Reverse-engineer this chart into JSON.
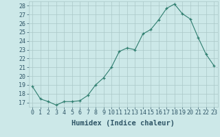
{
  "x": [
    0,
    1,
    2,
    3,
    4,
    5,
    6,
    7,
    8,
    9,
    10,
    11,
    12,
    13,
    14,
    15,
    16,
    17,
    18,
    19,
    20,
    21,
    22,
    23
  ],
  "y": [
    18.8,
    17.4,
    17.1,
    16.7,
    17.1,
    17.1,
    17.2,
    17.8,
    19.0,
    19.8,
    21.0,
    22.8,
    23.2,
    23.0,
    24.8,
    25.3,
    26.4,
    27.7,
    28.2,
    27.1,
    26.5,
    24.4,
    22.5,
    21.2
  ],
  "line_color": "#2e7d6e",
  "marker": "+",
  "bg_color": "#cce8e8",
  "grid_color": "#aac8c8",
  "xlabel": "Humidex (Indice chaleur)",
  "xlim": [
    -0.5,
    23.5
  ],
  "ylim": [
    16.5,
    28.5
  ],
  "yticks": [
    17,
    18,
    19,
    20,
    21,
    22,
    23,
    24,
    25,
    26,
    27,
    28
  ],
  "xticks": [
    0,
    1,
    2,
    3,
    4,
    5,
    6,
    7,
    8,
    9,
    10,
    11,
    12,
    13,
    14,
    15,
    16,
    17,
    18,
    19,
    20,
    21,
    22,
    23
  ],
  "font_color": "#2e5566",
  "tick_font_size": 6,
  "label_font_size": 7.5
}
